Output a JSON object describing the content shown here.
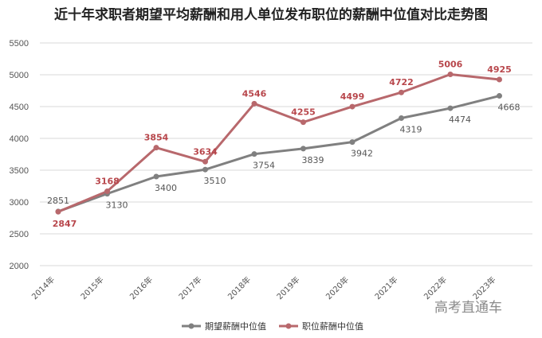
{
  "chart_data": {
    "type": "line",
    "title": "近十年求职者期望平均薪酬和用人单位发布职位的薪酬中位值对比走势图",
    "categories": [
      "2014年",
      "2015年",
      "2016年",
      "2017年",
      "2018年",
      "2019年",
      "2020年",
      "2021年",
      "2022年",
      "2023年"
    ],
    "ylim": [
      2000,
      5500
    ],
    "yticks": [
      2000,
      2500,
      3000,
      3500,
      4000,
      4500,
      5000,
      5500
    ],
    "grid": true,
    "legend_position": "bottom",
    "series": [
      {
        "name": "期望薪酬中位值",
        "color": "#808080",
        "values": [
          2851,
          3130,
          3400,
          3510,
          3754,
          3839,
          3942,
          4319,
          4474,
          4668
        ]
      },
      {
        "name": "职位薪酬中位值",
        "color": "#b8686c",
        "label_color": "#b8474c",
        "values": [
          2847,
          3168,
          3854,
          3634,
          4546,
          4255,
          4499,
          4722,
          5006,
          4925
        ]
      }
    ]
  },
  "watermark": "高考直通车"
}
